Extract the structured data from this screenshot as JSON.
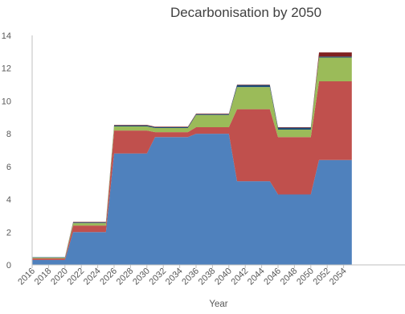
{
  "chart_data": {
    "type": "area",
    "title": "Decarbonisation by 2050",
    "xlabel": "Year",
    "ylabel": "",
    "ylim": [
      0,
      14
    ],
    "yticks": [
      0,
      2,
      4,
      6,
      8,
      10,
      12,
      14
    ],
    "x": [
      2016,
      2017,
      2018,
      2019,
      2020,
      2021,
      2022,
      2023,
      2024,
      2025,
      2026,
      2027,
      2028,
      2029,
      2030,
      2031,
      2032,
      2033,
      2034,
      2035,
      2036,
      2037,
      2038,
      2039,
      2040,
      2041,
      2042,
      2043,
      2044,
      2045,
      2046,
      2047,
      2048,
      2049,
      2050,
      2051,
      2052,
      2053,
      2054,
      2055
    ],
    "xtick_labels": [
      "2016",
      "2018",
      "2020",
      "2022",
      "2024",
      "2026",
      "2028",
      "2030",
      "2032",
      "2034",
      "2036",
      "2038",
      "2040",
      "2042",
      "2044",
      "2046",
      "2048",
      "2050",
      "2052",
      "2054"
    ],
    "grid": false,
    "legend": "none",
    "series": [
      {
        "color": "#4f81bd",
        "values": [
          0.3,
          0.3,
          0.3,
          0.3,
          0.3,
          2.0,
          2.0,
          2.0,
          2.0,
          2.0,
          6.8,
          6.8,
          6.8,
          6.8,
          6.8,
          7.8,
          7.8,
          7.8,
          7.8,
          7.8,
          8.0,
          8.0,
          8.0,
          8.0,
          8.0,
          5.1,
          5.1,
          5.1,
          5.1,
          5.1,
          4.3,
          4.3,
          4.3,
          4.3,
          4.3,
          6.4,
          6.4,
          6.4,
          6.4,
          6.4
        ]
      },
      {
        "color": "#c0504d",
        "values": [
          0.1,
          0.1,
          0.1,
          0.1,
          0.1,
          0.4,
          0.4,
          0.4,
          0.4,
          0.4,
          1.4,
          1.4,
          1.4,
          1.4,
          1.4,
          0.3,
          0.3,
          0.3,
          0.3,
          0.3,
          0.4,
          0.4,
          0.4,
          0.4,
          0.4,
          4.4,
          4.4,
          4.4,
          4.4,
          4.4,
          3.5,
          3.5,
          3.5,
          3.5,
          3.5,
          4.8,
          4.8,
          4.8,
          4.8,
          4.8
        ]
      },
      {
        "color": "#9bbb59",
        "values": [
          0.05,
          0.05,
          0.05,
          0.05,
          0.05,
          0.15,
          0.15,
          0.15,
          0.15,
          0.15,
          0.25,
          0.25,
          0.25,
          0.25,
          0.25,
          0.25,
          0.25,
          0.25,
          0.25,
          0.25,
          0.75,
          0.75,
          0.75,
          0.75,
          0.75,
          1.35,
          1.35,
          1.35,
          1.35,
          1.35,
          0.45,
          0.45,
          0.45,
          0.45,
          0.45,
          1.45,
          1.45,
          1.45,
          1.45,
          1.45
        ]
      },
      {
        "color": "#1f4e79",
        "values": [
          0.02,
          0.02,
          0.02,
          0.02,
          0.02,
          0.04,
          0.04,
          0.04,
          0.04,
          0.04,
          0.06,
          0.06,
          0.06,
          0.06,
          0.06,
          0.05,
          0.05,
          0.05,
          0.05,
          0.05,
          0.05,
          0.05,
          0.05,
          0.05,
          0.05,
          0.12,
          0.12,
          0.12,
          0.12,
          0.12,
          0.12,
          0.12,
          0.12,
          0.12,
          0.12,
          0.06,
          0.06,
          0.06,
          0.06,
          0.06
        ]
      },
      {
        "color": "#7f2020",
        "values": [
          0,
          0,
          0,
          0,
          0,
          0.03,
          0.03,
          0.03,
          0.03,
          0.03,
          0.03,
          0.03,
          0.03,
          0.03,
          0.03,
          0.03,
          0.03,
          0.03,
          0.03,
          0.03,
          0.03,
          0.03,
          0.03,
          0.03,
          0.03,
          0.03,
          0.03,
          0.03,
          0.03,
          0.03,
          0.03,
          0.03,
          0.03,
          0.03,
          0.03,
          0.25,
          0.25,
          0.25,
          0.25,
          0.25
        ]
      }
    ]
  }
}
